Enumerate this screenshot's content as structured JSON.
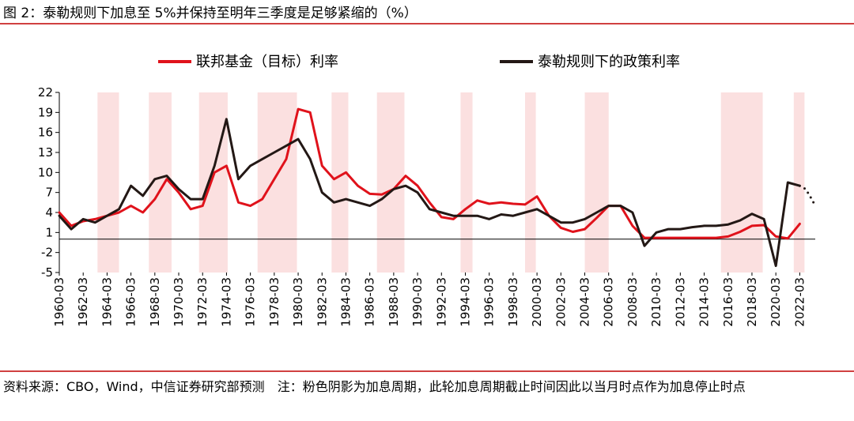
{
  "title": "图 2：泰勒规则下加息至 5%并保持至明年三季度是足够紧缩的（%）",
  "source": "资料来源：CBO，Wind，中信证券研究部预测",
  "note": "注：粉色阴影为加息周期，此轮加息周期截止时间因此以当月时点作为加息停止时点",
  "chart_data": {
    "type": "line",
    "x": [
      1960,
      1961,
      1962,
      1963,
      1964,
      1965,
      1966,
      1967,
      1968,
      1969,
      1970,
      1971,
      1972,
      1973,
      1974,
      1975,
      1976,
      1977,
      1978,
      1979,
      1980,
      1981,
      1982,
      1983,
      1984,
      1985,
      1986,
      1987,
      1988,
      1989,
      1990,
      1991,
      1992,
      1993,
      1994,
      1995,
      1996,
      1997,
      1998,
      1999,
      2000,
      2001,
      2002,
      2003,
      2004,
      2005,
      2006,
      2007,
      2008,
      2009,
      2010,
      2011,
      2012,
      2013,
      2014,
      2015,
      2016,
      2017,
      2018,
      2019,
      2020,
      2021,
      2022
    ],
    "series": [
      {
        "name": "联邦基金（目标）利率",
        "color": "#e0121b",
        "values": [
          4,
          2,
          2.7,
          3,
          3.5,
          4,
          5,
          4,
          6,
          9,
          7,
          4.5,
          5,
          10,
          11,
          5.5,
          5,
          6,
          9,
          12,
          19.5,
          19,
          11,
          9,
          10,
          8,
          6.8,
          6.7,
          7.5,
          9.5,
          8,
          5.5,
          3.3,
          3,
          4.5,
          5.8,
          5.3,
          5.5,
          5.3,
          5.2,
          6.4,
          3.5,
          1.7,
          1.1,
          1.5,
          3.2,
          5,
          5,
          2,
          0.2,
          0.2,
          0.2,
          0.2,
          0.2,
          0.2,
          0.2,
          0.4,
          1.1,
          2,
          2.1,
          0.4,
          0.1,
          2.3
        ]
      },
      {
        "name": "泰勒规则下的政策利率",
        "color": "#231815",
        "values": [
          3.5,
          1.5,
          3,
          2.5,
          3.5,
          4.5,
          8,
          6.5,
          9,
          9.5,
          7.5,
          6,
          6,
          11,
          18,
          9,
          11,
          12,
          13,
          14,
          15,
          12,
          7,
          5.5,
          6,
          5.5,
          5,
          6,
          7.5,
          8,
          7,
          4.5,
          4,
          3.5,
          3.5,
          3.5,
          3,
          3.7,
          3.5,
          4,
          4.5,
          3.5,
          2.5,
          2.5,
          3,
          4,
          5,
          5,
          4,
          -1,
          1,
          1.5,
          1.5,
          1.8,
          2,
          2,
          2.2,
          2.8,
          3.8,
          3,
          -4,
          8.5,
          8
        ]
      },
      {
        "color": "#231815",
        "line_style": "dotted",
        "x": [
          2022,
          2022.5,
          2023,
          2023.3
        ],
        "values": [
          8,
          7.5,
          6,
          5
        ]
      }
    ],
    "shaded_periods": [
      [
        1963.2,
        1965
      ],
      [
        1967.5,
        1969.4
      ],
      [
        1971.7,
        1974.1
      ],
      [
        1976.6,
        1979.9
      ],
      [
        1982.8,
        1984.2
      ],
      [
        1986.6,
        1988.9
      ],
      [
        1993.6,
        1994.6
      ],
      [
        1999,
        1999.9
      ],
      [
        2004,
        2006
      ],
      [
        2015.4,
        2018.9
      ],
      [
        2021.5,
        2022.4
      ]
    ],
    "shade_color": "#fbe0e0",
    "xlim": [
      1960,
      2023.3
    ],
    "xticks": [
      {
        "value": 1960,
        "label": "1960-03"
      },
      {
        "value": 1962,
        "label": "1962-03"
      },
      {
        "value": 1964,
        "label": "1964-03"
      },
      {
        "value": 1966,
        "label": "1966-03"
      },
      {
        "value": 1968,
        "label": "1968-03"
      },
      {
        "value": 1970,
        "label": "1970-03"
      },
      {
        "value": 1972,
        "label": "1972-03"
      },
      {
        "value": 1974,
        "label": "1974-03"
      },
      {
        "value": 1976,
        "label": "1976-03"
      },
      {
        "value": 1978,
        "label": "1978-03"
      },
      {
        "value": 1980,
        "label": "1980-03"
      },
      {
        "value": 1982,
        "label": "1982-03"
      },
      {
        "value": 1984,
        "label": "1984-03"
      },
      {
        "value": 1986,
        "label": "1986-03"
      },
      {
        "value": 1988,
        "label": "1988-03"
      },
      {
        "value": 1990,
        "label": "1990-03"
      },
      {
        "value": 1992,
        "label": "1992-03"
      },
      {
        "value": 1994,
        "label": "1994-03"
      },
      {
        "value": 1996,
        "label": "1996-03"
      },
      {
        "value": 1998,
        "label": "1998-03"
      },
      {
        "value": 2000,
        "label": "2000-03"
      },
      {
        "value": 2002,
        "label": "2002-03"
      },
      {
        "value": 2004,
        "label": "2004-03"
      },
      {
        "value": 2006,
        "label": "2006-03"
      },
      {
        "value": 2008,
        "label": "2008-03"
      },
      {
        "value": 2010,
        "label": "2010-03"
      },
      {
        "value": 2012,
        "label": "2012-03"
      },
      {
        "value": 2014,
        "label": "2014-03"
      },
      {
        "value": 2016,
        "label": "2016-03"
      },
      {
        "value": 2018,
        "label": "2018-03"
      },
      {
        "value": 2020,
        "label": "2020-03"
      },
      {
        "value": 2022,
        "label": "2022-03"
      }
    ],
    "ylim": [
      -5,
      22
    ],
    "yticks": [
      -5,
      -2,
      1,
      4,
      7,
      10,
      13,
      16,
      19,
      22
    ],
    "grid": false,
    "legend": "top"
  }
}
